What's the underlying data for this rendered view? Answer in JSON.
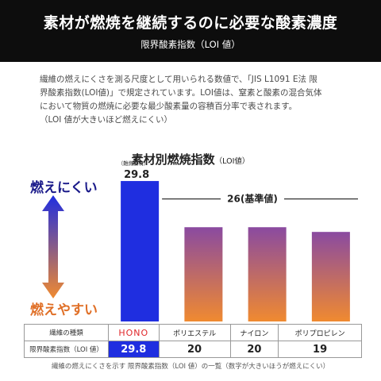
{
  "header": {
    "title": "素材が燃焼を継続するのに必要な酸素濃度",
    "subtitle": "限界酸素指数（LOI 値）"
  },
  "description": {
    "lines": [
      "繊維の燃えにくさを測る尺度として用いられる数値で、「JIS L1091 E法 限",
      "界酸素指数(LOI値)」で規定されています。LOI値は、窒素と酸素の混合気体",
      "において物質の燃焼に必要な最少酸素量の容積百分率で表されます。",
      "（LOI 値が大きいほど燃えにくい）"
    ]
  },
  "colors": {
    "hono_bar": "#1f2ee0",
    "bar_top": "#8a4aa0",
    "bar_bottom": "#f08a30",
    "arrow_top": "#1f2ee0",
    "arrow_bottom": "#f08a30",
    "hono_text": "#e0262a"
  },
  "chart_data": {
    "type": "bar",
    "title": "素材別燃焼指数",
    "title_unit": "（LOI値）",
    "categories": [
      "HONO",
      "ポリエステル",
      "ナイロン",
      "ポリプロピレン"
    ],
    "values": [
      29.8,
      20,
      20,
      19
    ],
    "ylim": [
      0,
      32
    ],
    "reference_line": {
      "value": 26,
      "label": "26(基準値)"
    },
    "top_bar_label": {
      "note": "（難燃素材）",
      "value": "29.8"
    },
    "axis_labels": {
      "top": "燃えにくい",
      "bottom": "燃えやすい"
    },
    "table": {
      "row1_header": "繊維の種類",
      "row2_header": "限界酸素指数（LOI 値）",
      "value_labels": [
        "29.8",
        "20",
        "20",
        "19"
      ]
    }
  },
  "footnote": "繊維の燃えにくさを示す 限界酸素指数（LOI 値）の一覧（数字が大きいほうが燃えにくい）"
}
